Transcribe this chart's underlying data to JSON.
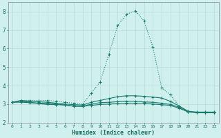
{
  "xlabel": "Humidex (Indice chaleur)",
  "x_values": [
    0,
    1,
    2,
    3,
    4,
    5,
    6,
    7,
    8,
    9,
    10,
    11,
    12,
    13,
    14,
    15,
    16,
    17,
    18,
    19,
    20,
    21,
    22,
    23
  ],
  "series": [
    [
      3.1,
      3.2,
      3.2,
      3.2,
      3.2,
      3.15,
      3.1,
      3.05,
      3.0,
      3.6,
      4.2,
      5.7,
      7.25,
      7.85,
      8.05,
      7.5,
      6.1,
      3.9,
      3.5,
      2.9,
      2.6,
      2.55,
      2.55,
      2.55
    ],
    [
      3.1,
      3.2,
      3.15,
      3.12,
      3.1,
      3.05,
      3.0,
      2.97,
      2.95,
      3.1,
      3.2,
      3.3,
      3.4,
      3.45,
      3.45,
      3.42,
      3.38,
      3.33,
      3.15,
      2.9,
      2.62,
      2.57,
      2.57,
      2.57
    ],
    [
      3.1,
      3.15,
      3.1,
      3.05,
      3.05,
      3.0,
      2.95,
      2.9,
      2.88,
      3.0,
      3.08,
      3.1,
      3.13,
      3.15,
      3.15,
      3.12,
      3.1,
      3.05,
      2.98,
      2.83,
      2.6,
      2.55,
      2.55,
      2.55
    ],
    [
      3.1,
      3.1,
      3.08,
      3.03,
      2.98,
      2.97,
      2.95,
      2.88,
      2.88,
      2.93,
      2.98,
      3.0,
      3.03,
      3.05,
      3.05,
      3.05,
      3.0,
      2.97,
      2.93,
      2.78,
      2.58,
      2.53,
      2.53,
      2.53
    ]
  ],
  "line_color": "#1a7a6e",
  "marker": "+",
  "marker_size": 3,
  "bg_color": "#cff0ec",
  "grid_color": "#b8d8d4",
  "axis_color": "#1a6b5e",
  "ylim": [
    2.0,
    8.5
  ],
  "yticks": [
    2,
    3,
    4,
    5,
    6,
    7,
    8
  ],
  "xlim": [
    -0.5,
    23.5
  ],
  "line_width": 0.8
}
